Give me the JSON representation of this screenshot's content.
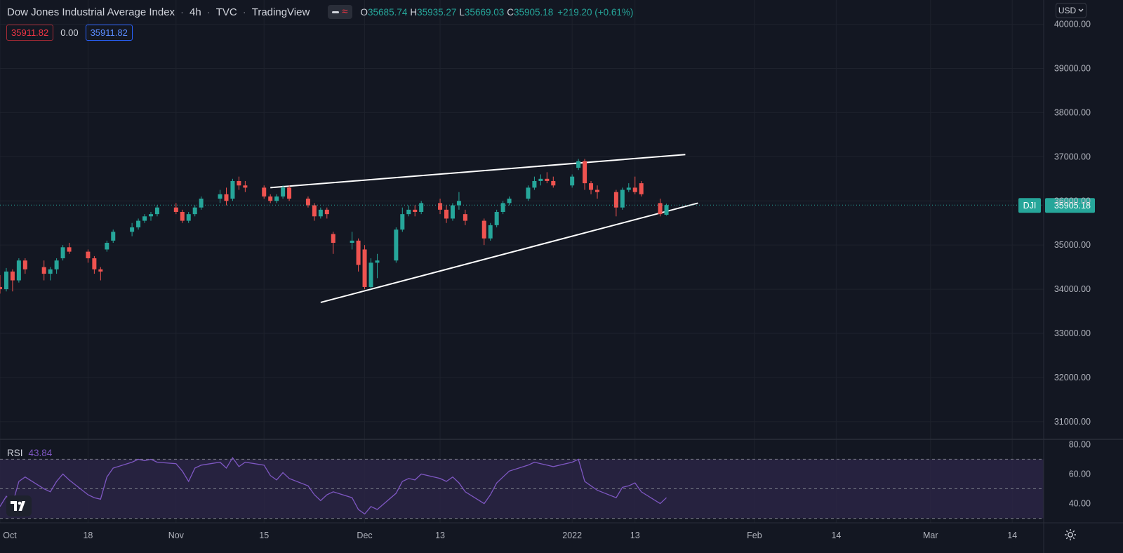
{
  "header": {
    "symbol_name": "Dow Jones Industrial Average Index",
    "interval": "4h",
    "exchange": "TVC",
    "source": "TradingView",
    "ohlc": {
      "o_label": "O",
      "o": "35685.74",
      "h_label": "H",
      "h": "35935.27",
      "l_label": "L",
      "l": "35669.03",
      "c_label": "C",
      "c": "35905.18",
      "change": "+219.20 (+0.61%)"
    },
    "sell_price": "35911.82",
    "spread": "0.00",
    "buy_price": "35911.82",
    "currency": "USD"
  },
  "colors": {
    "background": "#131722",
    "up": "#26a69a",
    "down": "#ef5350",
    "rsi_line": "#7e57c2",
    "rsi_band": "#2a2444",
    "grid": "#1e222d",
    "trendline": "#ffffff",
    "text": "#d1d4dc",
    "axis_text": "#b2b5be"
  },
  "icons": {
    "logo": "tradingview-logo-icon",
    "settings": "gear-icon",
    "currency_dropdown": "chevron-down-icon"
  },
  "chart_data": [
    {
      "type": "candlestick",
      "title": "Dow Jones Industrial Average Index",
      "ylim": [
        30600,
        40550
      ],
      "y_ticks": [
        "31000.00",
        "32000.00",
        "33000.00",
        "34000.00",
        "35000.00",
        "36000.00",
        "37000.00",
        "38000.00",
        "39000.00",
        "40000.00"
      ],
      "x_ticks": [
        "Oct",
        "18",
        "Nov",
        "15",
        "Dec",
        "13",
        "2022",
        "13",
        "Feb",
        "14",
        "Mar",
        "14"
      ],
      "x_range": [
        "2021-10-04",
        "2022-03-19"
      ],
      "grid": true,
      "last_price": {
        "label": "DJI",
        "value": 35905.18,
        "text": "35905.18"
      },
      "candles": [
        {
          "x": "2021-10-04",
          "o": 34050,
          "h": 34320,
          "l": 33900,
          "c": 34000
        },
        {
          "x": "2021-10-05",
          "o": 34000,
          "h": 34480,
          "l": 33950,
          "c": 34400
        },
        {
          "x": "2021-10-06",
          "o": 34400,
          "h": 34450,
          "l": 33950,
          "c": 34200
        },
        {
          "x": "2021-10-07",
          "o": 34200,
          "h": 34700,
          "l": 34150,
          "c": 34650
        },
        {
          "x": "2021-10-08",
          "o": 34650,
          "h": 34700,
          "l": 34350,
          "c": 34450
        },
        {
          "x": "2021-10-11",
          "o": 34500,
          "h": 34650,
          "l": 34200,
          "c": 34350
        },
        {
          "x": "2021-10-12",
          "o": 34350,
          "h": 34500,
          "l": 34200,
          "c": 34450
        },
        {
          "x": "2021-10-13",
          "o": 34450,
          "h": 34700,
          "l": 34350,
          "c": 34650
        },
        {
          "x": "2021-10-14",
          "o": 34700,
          "h": 35000,
          "l": 34650,
          "c": 34950
        },
        {
          "x": "2021-10-15",
          "o": 34950,
          "h": 35050,
          "l": 34800,
          "c": 34850
        },
        {
          "x": "2021-10-18",
          "o": 34850,
          "h": 34900,
          "l": 34600,
          "c": 34700
        },
        {
          "x": "2021-10-19",
          "o": 34700,
          "h": 34750,
          "l": 34350,
          "c": 34450
        },
        {
          "x": "2021-10-20",
          "o": 34450,
          "h": 34500,
          "l": 34200,
          "c": 34400
        },
        {
          "x": "2021-10-21",
          "o": 34900,
          "h": 35100,
          "l": 34850,
          "c": 35050
        },
        {
          "x": "2021-10-22",
          "o": 35100,
          "h": 35350,
          "l": 35050,
          "c": 35300
        },
        {
          "x": "2021-10-25",
          "o": 35300,
          "h": 35500,
          "l": 35200,
          "c": 35400
        },
        {
          "x": "2021-10-26",
          "o": 35400,
          "h": 35600,
          "l": 35350,
          "c": 35550
        },
        {
          "x": "2021-10-27",
          "o": 35550,
          "h": 35700,
          "l": 35500,
          "c": 35650
        },
        {
          "x": "2021-10-28",
          "o": 35650,
          "h": 35750,
          "l": 35550,
          "c": 35700
        },
        {
          "x": "2021-10-29",
          "o": 35700,
          "h": 35900,
          "l": 35650,
          "c": 35850
        },
        {
          "x": "2021-11-01",
          "o": 35850,
          "h": 35950,
          "l": 35700,
          "c": 35750
        },
        {
          "x": "2021-11-02",
          "o": 35750,
          "h": 35800,
          "l": 35500,
          "c": 35550
        },
        {
          "x": "2021-11-03",
          "o": 35550,
          "h": 35750,
          "l": 35500,
          "c": 35700
        },
        {
          "x": "2021-11-04",
          "o": 35700,
          "h": 35900,
          "l": 35650,
          "c": 35850
        },
        {
          "x": "2021-11-05",
          "o": 35850,
          "h": 36100,
          "l": 35800,
          "c": 36050
        },
        {
          "x": "2021-11-08",
          "o": 36050,
          "h": 36250,
          "l": 35950,
          "c": 36150
        },
        {
          "x": "2021-11-09",
          "o": 36150,
          "h": 36300,
          "l": 35900,
          "c": 36000
        },
        {
          "x": "2021-11-10",
          "o": 36050,
          "h": 36500,
          "l": 36000,
          "c": 36450
        },
        {
          "x": "2021-11-11",
          "o": 36450,
          "h": 36550,
          "l": 36250,
          "c": 36350
        },
        {
          "x": "2021-11-12",
          "o": 36350,
          "h": 36450,
          "l": 36200,
          "c": 36300
        },
        {
          "x": "2021-11-15",
          "o": 36300,
          "h": 36350,
          "l": 36050,
          "c": 36100
        },
        {
          "x": "2021-11-16",
          "o": 36100,
          "h": 36150,
          "l": 35950,
          "c": 36000
        },
        {
          "x": "2021-11-17",
          "o": 36000,
          "h": 36150,
          "l": 35950,
          "c": 36100
        },
        {
          "x": "2021-11-18",
          "o": 36100,
          "h": 36350,
          "l": 36050,
          "c": 36300
        },
        {
          "x": "2021-11-19",
          "o": 36300,
          "h": 36350,
          "l": 36000,
          "c": 36050
        },
        {
          "x": "2021-11-22",
          "o": 36050,
          "h": 36100,
          "l": 35850,
          "c": 35900
        },
        {
          "x": "2021-11-23",
          "o": 35900,
          "h": 35950,
          "l": 35550,
          "c": 35650
        },
        {
          "x": "2021-11-24",
          "o": 35650,
          "h": 35850,
          "l": 35600,
          "c": 35800
        },
        {
          "x": "2021-11-25",
          "o": 35800,
          "h": 35850,
          "l": 35600,
          "c": 35700
        },
        {
          "x": "2021-11-26",
          "o": 35250,
          "h": 35300,
          "l": 34800,
          "c": 35050
        },
        {
          "x": "2021-11-29",
          "o": 35050,
          "h": 35300,
          "l": 34900,
          "c": 35100
        },
        {
          "x": "2021-11-30",
          "o": 35100,
          "h": 35150,
          "l": 34400,
          "c": 34550
        },
        {
          "x": "2021-12-01",
          "o": 34900,
          "h": 35000,
          "l": 34000,
          "c": 34050
        },
        {
          "x": "2021-12-02",
          "o": 34050,
          "h": 34700,
          "l": 34000,
          "c": 34600
        },
        {
          "x": "2021-12-03",
          "o": 34600,
          "h": 34800,
          "l": 34250,
          "c": 34650
        },
        {
          "x": "2021-12-06",
          "o": 34650,
          "h": 35400,
          "l": 34600,
          "c": 35350
        },
        {
          "x": "2021-12-07",
          "o": 35350,
          "h": 35850,
          "l": 35300,
          "c": 35700
        },
        {
          "x": "2021-12-08",
          "o": 35700,
          "h": 35900,
          "l": 35650,
          "c": 35800
        },
        {
          "x": "2021-12-09",
          "o": 35800,
          "h": 35900,
          "l": 35650,
          "c": 35750
        },
        {
          "x": "2021-12-10",
          "o": 35750,
          "h": 36000,
          "l": 35700,
          "c": 35950
        },
        {
          "x": "2021-12-13",
          "o": 35950,
          "h": 36050,
          "l": 35700,
          "c": 35800
        },
        {
          "x": "2021-12-14",
          "o": 35800,
          "h": 35900,
          "l": 35500,
          "c": 35600
        },
        {
          "x": "2021-12-15",
          "o": 35600,
          "h": 35950,
          "l": 35550,
          "c": 35900
        },
        {
          "x": "2021-12-16",
          "o": 35900,
          "h": 36200,
          "l": 35800,
          "c": 36000
        },
        {
          "x": "2021-12-17",
          "o": 35700,
          "h": 35800,
          "l": 35450,
          "c": 35550
        },
        {
          "x": "2021-12-20",
          "o": 35550,
          "h": 35600,
          "l": 35000,
          "c": 35150
        },
        {
          "x": "2021-12-21",
          "o": 35150,
          "h": 35500,
          "l": 35100,
          "c": 35450
        },
        {
          "x": "2021-12-22",
          "o": 35450,
          "h": 35800,
          "l": 35400,
          "c": 35750
        },
        {
          "x": "2021-12-23",
          "o": 35750,
          "h": 36000,
          "l": 35700,
          "c": 35950
        },
        {
          "x": "2021-12-24",
          "o": 35950,
          "h": 36100,
          "l": 35900,
          "c": 36050
        },
        {
          "x": "2021-12-27",
          "o": 36050,
          "h": 36350,
          "l": 36000,
          "c": 36300
        },
        {
          "x": "2021-12-28",
          "o": 36300,
          "h": 36550,
          "l": 36250,
          "c": 36450
        },
        {
          "x": "2021-12-29",
          "o": 36450,
          "h": 36600,
          "l": 36350,
          "c": 36500
        },
        {
          "x": "2021-12-30",
          "o": 36500,
          "h": 36650,
          "l": 36400,
          "c": 36450
        },
        {
          "x": "2021-12-31",
          "o": 36450,
          "h": 36550,
          "l": 36300,
          "c": 36350
        },
        {
          "x": "2022-01-03",
          "o": 36350,
          "h": 36600,
          "l": 36300,
          "c": 36550
        },
        {
          "x": "2022-01-04",
          "o": 36750,
          "h": 36950,
          "l": 36700,
          "c": 36900
        },
        {
          "x": "2022-01-05",
          "o": 36900,
          "h": 36950,
          "l": 36250,
          "c": 36400
        },
        {
          "x": "2022-01-06",
          "o": 36400,
          "h": 36450,
          "l": 36150,
          "c": 36250
        },
        {
          "x": "2022-01-07",
          "o": 36250,
          "h": 36350,
          "l": 36050,
          "c": 36200
        },
        {
          "x": "2022-01-10",
          "o": 36200,
          "h": 36250,
          "l": 35650,
          "c": 35850
        },
        {
          "x": "2022-01-11",
          "o": 35850,
          "h": 36300,
          "l": 35800,
          "c": 36250
        },
        {
          "x": "2022-01-12",
          "o": 36250,
          "h": 36400,
          "l": 36200,
          "c": 36300
        },
        {
          "x": "2022-01-13",
          "o": 36300,
          "h": 36550,
          "l": 36150,
          "c": 36200
        },
        {
          "x": "2022-01-14",
          "o": 36400,
          "h": 36450,
          "l": 36100,
          "c": 36150
        },
        {
          "x": "2022-01-17",
          "o": 35950,
          "h": 36050,
          "l": 35650,
          "c": 35700
        },
        {
          "x": "2022-01-18",
          "o": 35685.74,
          "h": 35935.27,
          "l": 35669.03,
          "c": 35905.18
        }
      ],
      "trendlines": [
        {
          "name": "upper-resistance",
          "from": [
            "2021-11-16",
            36300
          ],
          "to": [
            "2022-01-21",
            37050
          ]
        },
        {
          "name": "lower-support",
          "from": [
            "2021-11-24",
            33700
          ],
          "to": [
            "2022-01-23",
            35950
          ]
        }
      ]
    },
    {
      "type": "line",
      "title": "RSI",
      "current_value_text": "43.84",
      "ylim": [
        27,
        83
      ],
      "y_ticks": [
        "40.00",
        "60.00",
        "80.00"
      ],
      "band": [
        30,
        70
      ],
      "midline": 50,
      "x_range": [
        "2021-10-04",
        "2022-03-19"
      ],
      "series": [
        {
          "name": "RSI",
          "x": [
            "2021-10-04",
            "2021-10-05",
            "2021-10-06",
            "2021-10-07",
            "2021-10-08",
            "2021-10-11",
            "2021-10-12",
            "2021-10-13",
            "2021-10-14",
            "2021-10-15",
            "2021-10-18",
            "2021-10-19",
            "2021-10-20",
            "2021-10-21",
            "2021-10-22",
            "2021-10-25",
            "2021-10-26",
            "2021-10-27",
            "2021-10-28",
            "2021-10-29",
            "2021-11-01",
            "2021-11-02",
            "2021-11-03",
            "2021-11-04",
            "2021-11-05",
            "2021-11-08",
            "2021-11-09",
            "2021-11-10",
            "2021-11-11",
            "2021-11-12",
            "2021-11-15",
            "2021-11-16",
            "2021-11-17",
            "2021-11-18",
            "2021-11-19",
            "2021-11-22",
            "2021-11-23",
            "2021-11-24",
            "2021-11-25",
            "2021-11-26",
            "2021-11-29",
            "2021-11-30",
            "2021-12-01",
            "2021-12-02",
            "2021-12-03",
            "2021-12-06",
            "2021-12-07",
            "2021-12-08",
            "2021-12-09",
            "2021-12-10",
            "2021-12-13",
            "2021-12-14",
            "2021-12-15",
            "2021-12-16",
            "2021-12-17",
            "2021-12-20",
            "2021-12-21",
            "2021-12-22",
            "2021-12-23",
            "2021-12-24",
            "2021-12-27",
            "2021-12-28",
            "2021-12-29",
            "2021-12-30",
            "2021-12-31",
            "2022-01-03",
            "2022-01-04",
            "2022-01-05",
            "2022-01-06",
            "2022-01-07",
            "2022-01-10",
            "2022-01-11",
            "2022-01-12",
            "2022-01-13",
            "2022-01-14",
            "2022-01-17",
            "2022-01-18"
          ],
          "values": [
            38,
            45,
            40,
            55,
            58,
            50,
            48,
            55,
            60,
            56,
            46,
            44,
            43,
            58,
            64,
            68,
            70,
            69,
            70,
            68,
            67,
            62,
            55,
            64,
            66,
            68,
            64,
            71,
            65,
            68,
            66,
            59,
            56,
            61,
            57,
            52,
            46,
            42,
            46,
            48,
            44,
            36,
            33,
            38,
            36,
            47,
            55,
            57,
            56,
            60,
            57,
            55,
            58,
            54,
            48,
            40,
            46,
            54,
            58,
            62,
            66,
            68,
            67,
            66,
            65,
            68,
            70,
            55,
            52,
            49,
            44,
            51,
            52,
            54,
            48,
            40,
            44
          ]
        }
      ]
    }
  ]
}
